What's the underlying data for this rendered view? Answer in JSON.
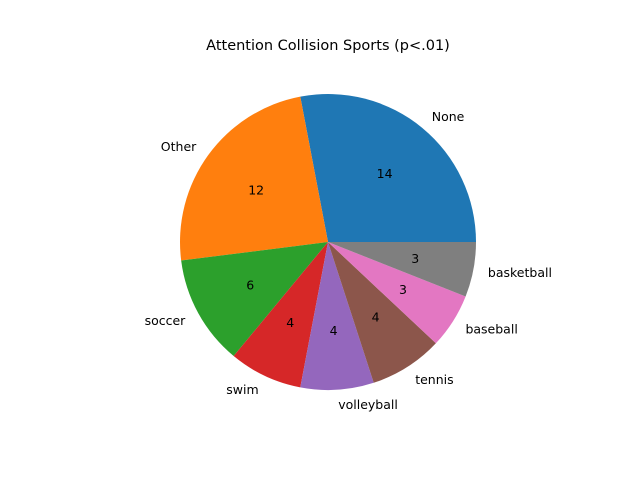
{
  "chart_data": {
    "type": "pie",
    "title": "Attention Collision  Sports (p<.01)",
    "slices": [
      {
        "label": "None",
        "value": 14,
        "color": "#1f77b4"
      },
      {
        "label": "Other",
        "value": 12,
        "color": "#ff7f0e"
      },
      {
        "label": "soccer",
        "value": 6,
        "color": "#2ca02c"
      },
      {
        "label": "swim",
        "value": 4,
        "color": "#d62728"
      },
      {
        "label": "volleyball",
        "value": 4,
        "color": "#9467bd"
      },
      {
        "label": "tennis",
        "value": 4,
        "color": "#8c564b"
      },
      {
        "label": "baseball",
        "value": 3,
        "color": "#e377c2"
      },
      {
        "label": "basketball",
        "value": 3,
        "color": "#7f7f7f"
      }
    ],
    "start_angle_deg": 0,
    "direction": "counterclockwise",
    "grid": false,
    "legend": "none"
  }
}
